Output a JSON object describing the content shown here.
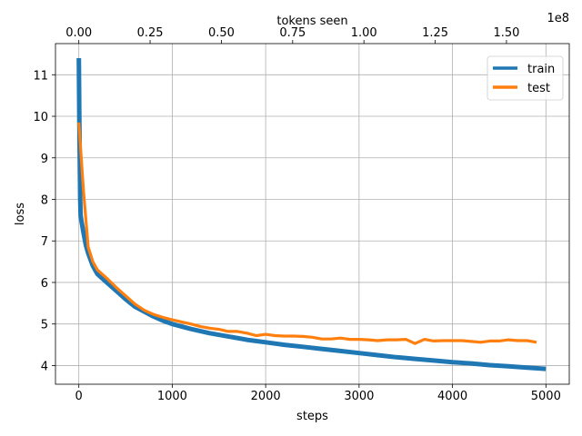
{
  "chart_data": {
    "type": "line",
    "xlabel": "steps",
    "ylabel": "loss",
    "top_xlabel": "tokens seen",
    "top_axis_offset_label": "1e8",
    "xlim": [
      -250,
      5250
    ],
    "ylim": [
      3.55,
      11.75
    ],
    "top_xlim": [
      -0.08192,
      1.72032
    ],
    "x_ticks": [
      0,
      1000,
      2000,
      3000,
      4000,
      5000
    ],
    "x_tick_labels": [
      "0",
      "1000",
      "2000",
      "3000",
      "4000",
      "5000"
    ],
    "y_ticks": [
      4,
      5,
      6,
      7,
      8,
      9,
      10,
      11
    ],
    "y_tick_labels": [
      "4",
      "5",
      "6",
      "7",
      "8",
      "9",
      "10",
      "11"
    ],
    "top_x_ticks": [
      0.0,
      0.25,
      0.5,
      0.75,
      1.0,
      1.25,
      1.5
    ],
    "top_x_tick_labels": [
      "0.00",
      "0.25",
      "0.50",
      "0.75",
      "1.00",
      "1.25",
      "1.50"
    ],
    "grid": true,
    "legend_position": "top-right",
    "series": [
      {
        "name": "train",
        "color": "#1f77b4",
        "x": [
          0,
          5,
          10,
          15,
          20,
          30,
          50,
          75,
          100,
          150,
          200,
          300,
          400,
          500,
          600,
          700,
          800,
          900,
          1000,
          1200,
          1400,
          1600,
          1800,
          2000,
          2200,
          2400,
          2600,
          2800,
          3000,
          3200,
          3400,
          3600,
          3800,
          4000,
          4200,
          4400,
          4600,
          4800,
          5000
        ],
        "y": [
          11.4,
          10.0,
          9.0,
          8.0,
          7.6,
          7.45,
          7.2,
          6.9,
          6.7,
          6.4,
          6.2,
          6.0,
          5.8,
          5.6,
          5.42,
          5.3,
          5.18,
          5.08,
          5.0,
          4.88,
          4.78,
          4.7,
          4.62,
          4.56,
          4.5,
          4.45,
          4.4,
          4.35,
          4.3,
          4.25,
          4.2,
          4.16,
          4.12,
          4.08,
          4.05,
          4.01,
          3.98,
          3.95,
          3.92
        ]
      },
      {
        "name": "test",
        "color": "#ff7f0e",
        "x": [
          0,
          50,
          100,
          150,
          200,
          300,
          400,
          500,
          600,
          700,
          800,
          900,
          1000,
          1100,
          1200,
          1300,
          1400,
          1500,
          1600,
          1700,
          1800,
          1900,
          2000,
          2100,
          2200,
          2300,
          2400,
          2500,
          2600,
          2700,
          2800,
          2900,
          3000,
          3100,
          3200,
          3300,
          3400,
          3500,
          3600,
          3700,
          3800,
          3900,
          4000,
          4100,
          4200,
          4300,
          4400,
          4500,
          4600,
          4700,
          4800,
          4900
        ],
        "y": [
          9.85,
          8.2,
          6.85,
          6.5,
          6.3,
          6.1,
          5.88,
          5.68,
          5.48,
          5.33,
          5.23,
          5.16,
          5.1,
          5.05,
          5.0,
          4.94,
          4.9,
          4.87,
          4.82,
          4.82,
          4.78,
          4.72,
          4.75,
          4.72,
          4.71,
          4.71,
          4.7,
          4.68,
          4.64,
          4.64,
          4.66,
          4.63,
          4.63,
          4.62,
          4.6,
          4.62,
          4.62,
          4.63,
          4.53,
          4.63,
          4.59,
          4.6,
          4.6,
          4.6,
          4.58,
          4.56,
          4.59,
          4.59,
          4.62,
          4.6,
          4.6,
          4.56
        ]
      }
    ]
  }
}
